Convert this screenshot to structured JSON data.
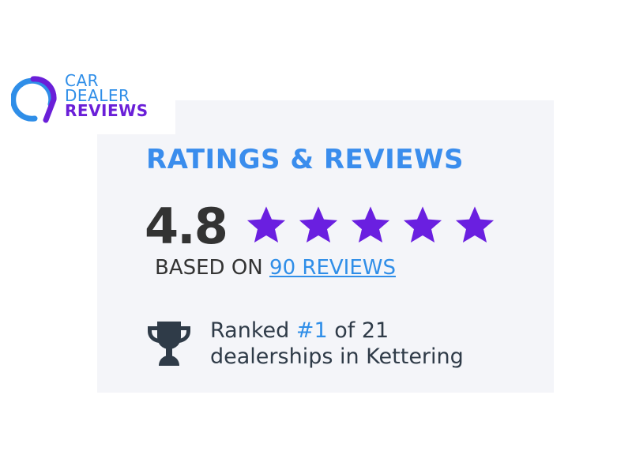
{
  "logo": {
    "line1": "CAR",
    "line2": "DEALER",
    "line3": "REVIEWS",
    "colors": {
      "blue": "#2f8ee8",
      "purple": "#6a1fd8"
    }
  },
  "widget": {
    "title": "RATINGS & REVIEWS",
    "score": "4.8",
    "stars": 5,
    "star_color": "#6a1fe0",
    "based_on": "BASED ON ",
    "reviews_link": "90 REVIEWS",
    "rank_prefix": "Ranked ",
    "rank_value": "#1",
    "rank_suffix": " of 21",
    "rank_line2": "dealerships in Kettering",
    "trophy_icon": "trophy-icon"
  }
}
